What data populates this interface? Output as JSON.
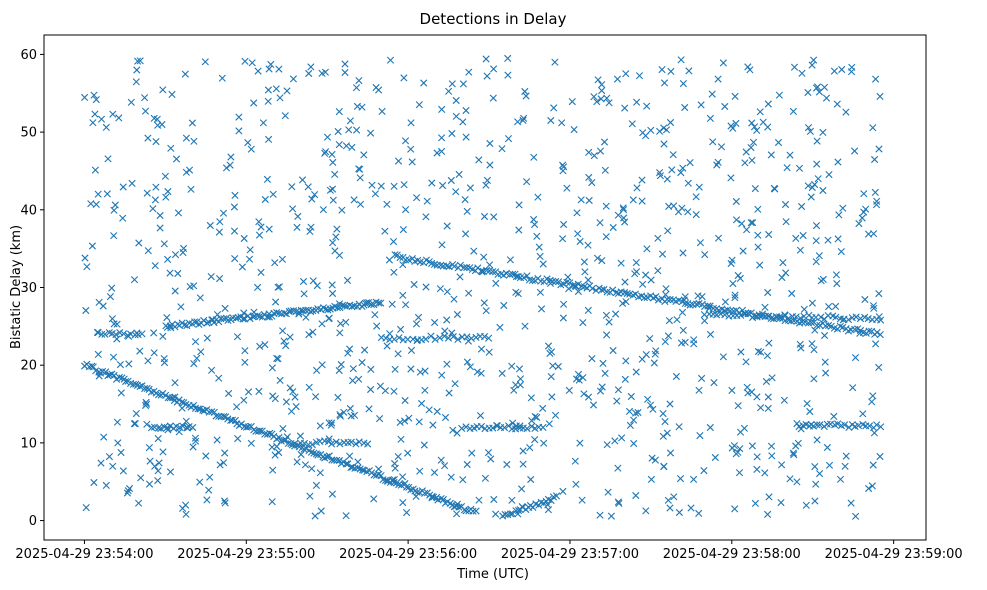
{
  "chart_data": {
    "type": "scatter",
    "title": "Detections in Delay",
    "xlabel": "Time (UTC)",
    "ylabel": "Bistatic Delay (km)",
    "marker": "x",
    "marker_color": "#1f77b4",
    "x_ticks": [
      "2025-04-29 23:54:00",
      "2025-04-29 23:55:00",
      "2025-04-29 23:56:00",
      "2025-04-29 23:57:00",
      "2025-04-29 23:58:00",
      "2025-04-29 23:59:00"
    ],
    "xlim": [
      "2025-04-29 23:53:45",
      "2025-04-29 23:59:12"
    ],
    "y_ticks": [
      0,
      10,
      20,
      30,
      40,
      50,
      60
    ],
    "ylim": [
      -2.5,
      62.5
    ],
    "grid": false,
    "series_traces": [
      {
        "x_start": "2025-04-29 23:54:00",
        "x_end": "2025-04-29 23:56:25",
        "y_start": 20,
        "y_end": 1,
        "count": 170
      },
      {
        "x_start": "2025-04-29 23:56:35",
        "x_end": "2025-04-29 23:56:55",
        "y_start": 0.5,
        "y_end": 3,
        "count": 22
      },
      {
        "x_start": "2025-04-29 23:55:55",
        "x_end": "2025-04-29 23:58:55",
        "y_start": 34,
        "y_end": 24,
        "count": 170
      },
      {
        "x_start": "2025-04-29 23:54:30",
        "x_end": "2025-04-29 23:55:50",
        "y_start": 25,
        "y_end": 28,
        "count": 90
      },
      {
        "x_start": "2025-04-29 23:54:05",
        "x_end": "2025-04-29 23:54:20",
        "y_start": 24,
        "y_end": 24,
        "count": 12
      },
      {
        "x_start": "2025-04-29 23:55:50",
        "x_end": "2025-04-29 23:56:30",
        "y_start": 23.5,
        "y_end": 23.5,
        "count": 25
      },
      {
        "x_start": "2025-04-29 23:57:50",
        "x_end": "2025-04-29 23:58:55",
        "y_start": 26.5,
        "y_end": 26,
        "count": 45
      },
      {
        "x_start": "2025-04-29 23:54:25",
        "x_end": "2025-04-29 23:54:40",
        "y_start": 12,
        "y_end": 12,
        "count": 14
      },
      {
        "x_start": "2025-04-29 23:56:20",
        "x_end": "2025-04-29 23:56:50",
        "y_start": 12,
        "y_end": 12,
        "count": 22
      },
      {
        "x_start": "2025-04-29 23:58:25",
        "x_end": "2025-04-29 23:58:55",
        "y_start": 12.2,
        "y_end": 12.2,
        "count": 24
      },
      {
        "x_start": "2025-04-29 23:55:20",
        "x_end": "2025-04-29 23:55:45",
        "y_start": 10,
        "y_end": 10,
        "count": 18
      }
    ],
    "noise": {
      "x_start": "2025-04-29 23:54:00",
      "x_end": "2025-04-29 23:58:55",
      "y_min": 0.5,
      "y_max": 59.5,
      "count": 1050,
      "seed": 7
    }
  }
}
